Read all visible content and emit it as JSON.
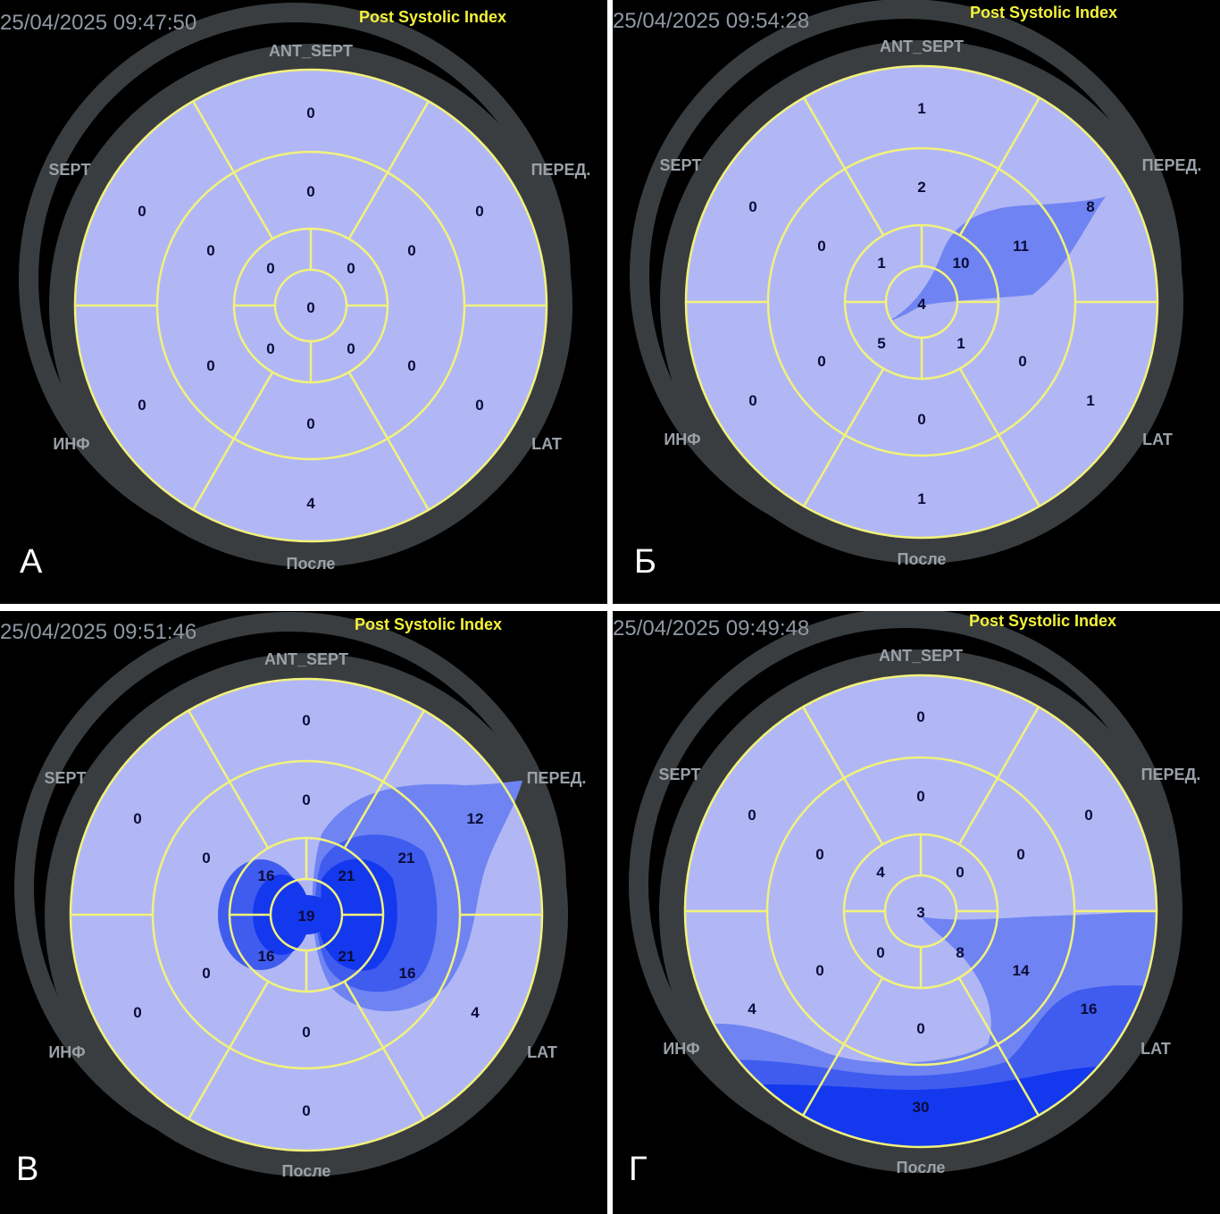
{
  "colors": {
    "background": "#000000",
    "separator": "#ffffff",
    "ring": "#3a3d3f",
    "map_fill": "#b1b7f5",
    "grid_line": "#f2f27a",
    "title": "#f4f23a",
    "timestamp": "#8f98a3",
    "heat_low": "#6f84f2",
    "heat_mid": "#3f5cef",
    "heat_high": "#1438ee"
  },
  "panels": [
    {
      "id": "A",
      "letter": "А",
      "timestamp": "25/04/2025 09:47:50",
      "title": "Post Systolic Index",
      "labels": {
        "ant_sept": "ANT_SEPT",
        "sept": "SEPT",
        "pered": "ПЕРЕД.",
        "inf": "ИНФ",
        "lat": "LAT",
        "posle": "После"
      },
      "segments": {
        "basal": [
          "0",
          "0",
          "0",
          "4",
          "0",
          "0"
        ],
        "mid": [
          "0",
          "0",
          "0",
          "0",
          "0",
          "0"
        ],
        "apical": [
          "0",
          "0",
          "0",
          "0"
        ],
        "apex": "0"
      }
    },
    {
      "id": "B",
      "letter": "Б",
      "timestamp": "25/04/2025 09:54:28",
      "title": "Post Systolic Index",
      "labels": {
        "ant_sept": "ANT_SEPT",
        "sept": "SEPT",
        "pered": "ПЕРЕД.",
        "inf": "ИНФ",
        "lat": "LAT",
        "posle": "После"
      },
      "segments": {
        "basal": [
          "1",
          "8",
          "1",
          "1",
          "0",
          "0"
        ],
        "mid": [
          "2",
          "11",
          "0",
          "0",
          "0",
          "0"
        ],
        "apical": [
          "10",
          "1",
          "5",
          "1"
        ],
        "apex": "4"
      }
    },
    {
      "id": "C",
      "letter": "В",
      "timestamp": "25/04/2025 09:51:46",
      "title": "Post Systolic Index",
      "labels": {
        "ant_sept": "ANT_SEPT",
        "sept": "SEPT",
        "pered": "ПЕРЕД.",
        "inf": "ИНФ",
        "lat": "LAT",
        "posle": "После"
      },
      "segments": {
        "basal": [
          "0",
          "12",
          "4",
          "0",
          "0",
          "0"
        ],
        "mid": [
          "0",
          "21",
          "16",
          "0",
          "0",
          "0"
        ],
        "apical": [
          "21",
          "21",
          "16",
          "16"
        ],
        "apex": "19"
      }
    },
    {
      "id": "D",
      "letter": "Г",
      "timestamp": "25/04/2025 09:49:48",
      "title": "Post Systolic Index",
      "labels": {
        "ant_sept": "ANT_SEPT",
        "sept": "SEPT",
        "pered": "ПЕРЕД.",
        "inf": "ИНФ",
        "lat": "LAT",
        "posle": "После"
      },
      "segments": {
        "basal": [
          "0",
          "0",
          "16",
          "30",
          "4",
          "0"
        ],
        "mid": [
          "0",
          "0",
          "14",
          "0",
          "0",
          "0"
        ],
        "apical": [
          "0",
          "8",
          "0",
          "4"
        ],
        "apex": "3"
      }
    }
  ]
}
